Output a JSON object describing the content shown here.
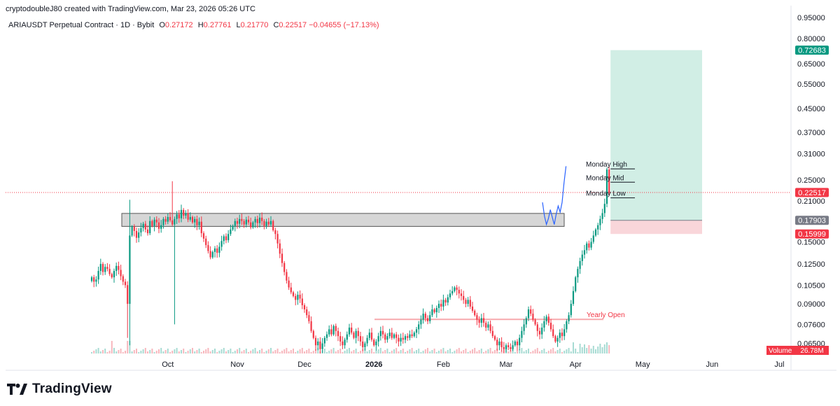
{
  "attribution": "cryptodoubleJ80 created with TradingView.com, Mar 23, 2026 05:26 UTC",
  "symbol_line": {
    "symbol": "ARIAUSDT Perpetual Contract · 1D · Bybit",
    "open_label": "O",
    "open": "0.27172",
    "high_label": "H",
    "high": "0.27761",
    "low_label": "L",
    "low": "0.21770",
    "close_label": "C",
    "close": "0.22517",
    "change": "−0.04655 (−17.13%)"
  },
  "brand": "TradingView",
  "colors": {
    "up": "#089981",
    "down": "#f23645",
    "target_zone": "#c9ebe1",
    "stop_zone": "#f8d2d6",
    "grey_zone": "#c8c8c8",
    "path": "#2962ff",
    "yearly_open": "#f7a9ad"
  },
  "chart_data": {
    "type": "candlestick",
    "title": "ARIAUSDT Perpetual Contract · 1D · Bybit",
    "scale": "log",
    "ylim": [
      0.0598,
      0.99
    ],
    "y_ticks": [
      "0.95000",
      "0.80000",
      "0.65000",
      "0.55000",
      "0.45000",
      "0.37000",
      "0.31000",
      "0.25000",
      "0.21000",
      "0.15000",
      "0.12500",
      "0.10500",
      "0.09000",
      "0.07600",
      "0.06500"
    ],
    "x_ticks": [
      "Oct",
      "Nov",
      "Dec",
      "2026",
      "Feb",
      "Mar",
      "Apr",
      "May",
      "Jun",
      "Jul"
    ],
    "price_labels": [
      {
        "text": "0.72683",
        "color": "#089981"
      },
      {
        "text": "0.22517",
        "color": "#f23645"
      },
      {
        "text": "0.17903",
        "color": "#787b86"
      },
      {
        "text": "0.15999",
        "color": "#f23645"
      }
    ],
    "volume_label": {
      "name": "Volume",
      "value": "26.78M"
    },
    "annotations": [
      {
        "text": "Monday High",
        "price": 0.2735
      },
      {
        "text": "Monday Mid",
        "price": 0.245
      },
      {
        "text": "Monday Low",
        "price": 0.2155
      },
      {
        "text": "Yearly Open",
        "price": 0.0792
      }
    ],
    "zones": {
      "grey": [
        0.1703,
        0.1895
      ],
      "target": [
        0.17903,
        0.72683
      ],
      "stop": [
        0.15999,
        0.17903
      ]
    },
    "projected_path": [
      0.2075,
      0.1855,
      0.173,
      0.1815,
      0.1955,
      0.1835,
      0.173,
      0.1885,
      0.2015,
      0.1915,
      0.2075,
      0.2445,
      0.2795
    ],
    "closes": [
      0.112,
      0.108,
      0.11,
      0.118,
      0.125,
      0.117,
      0.122,
      0.12,
      0.115,
      0.112,
      0.118,
      0.123,
      0.119,
      0.113,
      0.108,
      0.105,
      0.09,
      0.158,
      0.17,
      0.164,
      0.155,
      0.162,
      0.168,
      0.174,
      0.166,
      0.161,
      0.178,
      0.171,
      0.18,
      0.176,
      0.167,
      0.172,
      0.181,
      0.177,
      0.184,
      0.179,
      0.173,
      0.181,
      0.188,
      0.182,
      0.195,
      0.186,
      0.19,
      0.18,
      0.184,
      0.176,
      0.181,
      0.172,
      0.177,
      0.161,
      0.154,
      0.146,
      0.139,
      0.132,
      0.138,
      0.142,
      0.137,
      0.144,
      0.151,
      0.157,
      0.152,
      0.16,
      0.166,
      0.171,
      0.178,
      0.174,
      0.181,
      0.178,
      0.173,
      0.18,
      0.176,
      0.169,
      0.176,
      0.181,
      0.175,
      0.183,
      0.178,
      0.171,
      0.177,
      0.173,
      0.178,
      0.165,
      0.16,
      0.148,
      0.136,
      0.126,
      0.117,
      0.109,
      0.103,
      0.099,
      0.096,
      0.093,
      0.097,
      0.094,
      0.089,
      0.086,
      0.082,
      0.078,
      0.072,
      0.068,
      0.064,
      0.066,
      0.062,
      0.065,
      0.068,
      0.07,
      0.073,
      0.07,
      0.075,
      0.072,
      0.069,
      0.066,
      0.064,
      0.067,
      0.07,
      0.074,
      0.071,
      0.068,
      0.072,
      0.069,
      0.066,
      0.063,
      0.065,
      0.068,
      0.071,
      0.067,
      0.064,
      0.066,
      0.069,
      0.072,
      0.07,
      0.067,
      0.069,
      0.071,
      0.068,
      0.07,
      0.068,
      0.066,
      0.068,
      0.067,
      0.069,
      0.068,
      0.07,
      0.069,
      0.071,
      0.073,
      0.076,
      0.079,
      0.083,
      0.08,
      0.078,
      0.082,
      0.086,
      0.084,
      0.087,
      0.09,
      0.088,
      0.093,
      0.091,
      0.095,
      0.098,
      0.1,
      0.103,
      0.101,
      0.098,
      0.096,
      0.093,
      0.09,
      0.093,
      0.088,
      0.085,
      0.082,
      0.079,
      0.077,
      0.08,
      0.077,
      0.074,
      0.076,
      0.072,
      0.069,
      0.067,
      0.064,
      0.066,
      0.063,
      0.062,
      0.064,
      0.063,
      0.062,
      0.064,
      0.066,
      0.064,
      0.068,
      0.072,
      0.076,
      0.08,
      0.086,
      0.083,
      0.079,
      0.076,
      0.072,
      0.07,
      0.074,
      0.078,
      0.081,
      0.077,
      0.073,
      0.069,
      0.066,
      0.068,
      0.071,
      0.069,
      0.073,
      0.078,
      0.082,
      0.09,
      0.1,
      0.112,
      0.12,
      0.128,
      0.135,
      0.14,
      0.148,
      0.143,
      0.15,
      0.158,
      0.166,
      0.172,
      0.181,
      0.19,
      0.205,
      0.272,
      0.225
    ]
  }
}
